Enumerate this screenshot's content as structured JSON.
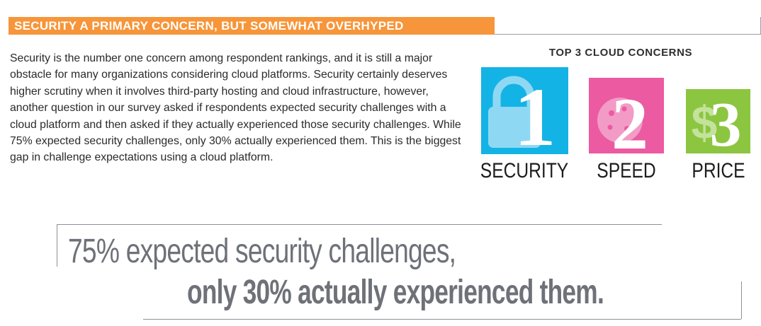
{
  "header": {
    "title": "SECURITY A PRIMARY CONCERN, BUT SOMEWHAT OVERHYPED"
  },
  "body": {
    "paragraph": "Security is the number one concern among respondent rankings, and it is still a major obstacle for many organizations considering cloud platforms. Security certainly deserves higher scrutiny when it involves third-party hosting and cloud infrastructure, however, another question in our survey asked if respondents expected security challenges with a cloud platform and then asked if they actually experienced those security challenges. While 75% expected security challenges, only 30% actually experienced them.  This is the biggest gap in challenge expectations using a cloud platform."
  },
  "concerns": {
    "title": "TOP 3 CLOUD CONCERNS",
    "items": [
      {
        "rank": "1",
        "label": "SECURITY",
        "icon": "padlock-icon",
        "color": "#14b3e5"
      },
      {
        "rank": "2",
        "label": "SPEED",
        "icon": "cookie-icon",
        "color": "#ec5aa1"
      },
      {
        "rank": "3",
        "label": "PRICE",
        "icon": "dollar-sign-icon",
        "color": "#8cc640"
      }
    ]
  },
  "pullquote": {
    "line1": "75% expected security challenges,",
    "line2": "only 30% actually experienced them."
  },
  "colors": {
    "accent_orange": "#f7953a",
    "quote_gray": "#6e7178"
  }
}
